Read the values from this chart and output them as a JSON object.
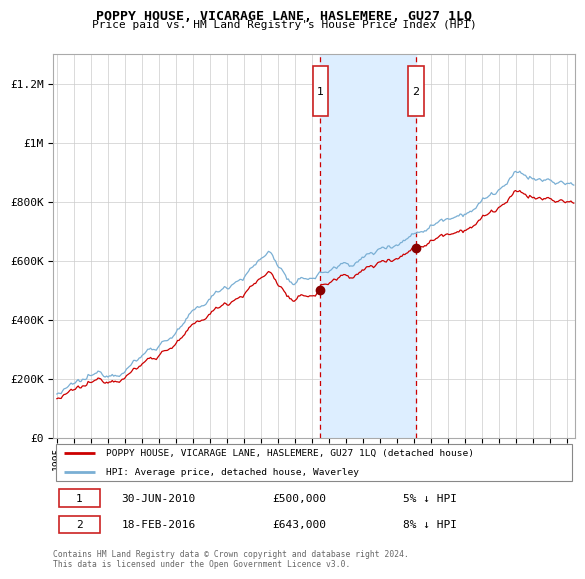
{
  "title": "POPPY HOUSE, VICARAGE LANE, HASLEMERE, GU27 1LQ",
  "subtitle": "Price paid vs. HM Land Registry's House Price Index (HPI)",
  "ylabel_ticks": [
    "£0",
    "£200K",
    "£400K",
    "£600K",
    "£800K",
    "£1M",
    "£1.2M"
  ],
  "ytick_values": [
    0,
    200000,
    400000,
    600000,
    800000,
    1000000,
    1200000
  ],
  "ylim": [
    0,
    1300000
  ],
  "xlim_start": 1994.8,
  "xlim_end": 2025.5,
  "sale1_date": 2010.5,
  "sale1_price": 500000,
  "sale1_label": "1",
  "sale2_date": 2016.125,
  "sale2_price": 643000,
  "sale2_label": "2",
  "house_line_color": "#cc0000",
  "hpi_line_color": "#7aafd4",
  "shaded_region_color": "#ddeeff",
  "dashed_line_color": "#cc0000",
  "legend_house_label": "POPPY HOUSE, VICARAGE LANE, HASLEMERE, GU27 1LQ (detached house)",
  "legend_hpi_label": "HPI: Average price, detached house, Waverley",
  "table_row1": [
    "1",
    "30-JUN-2010",
    "£500,000",
    "5% ↓ HPI"
  ],
  "table_row2": [
    "2",
    "18-FEB-2016",
    "£643,000",
    "8% ↓ HPI"
  ],
  "footnote": "Contains HM Land Registry data © Crown copyright and database right 2024.\nThis data is licensed under the Open Government Licence v3.0.",
  "background_color": "#ffffff",
  "plot_bg_color": "#ffffff",
  "grid_color": "#cccccc"
}
